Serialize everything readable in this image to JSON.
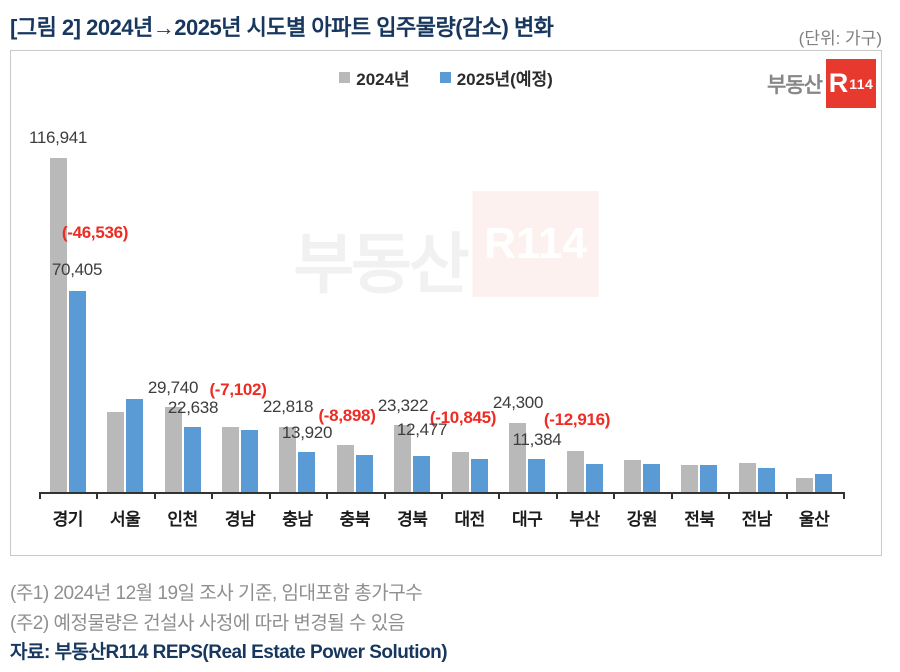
{
  "page": {
    "title": "[그림 2] 2024년→2025년 시도별 아파트 입주물량(감소) 변화",
    "unit_note": "(단위: 가구)",
    "footnote1": "(주1) 2024년 12월 19일 조사 기준, 임대포함 총가구수",
    "footnote2": "(주2) 예정물량은 건설사 사정에 따라 변경될 수 있음",
    "source": "자료: 부동산R114 REPS(Real Estate Power Solution)"
  },
  "legend": {
    "label_2024": "2024년",
    "label_2025": "2025년(예정)"
  },
  "logo": {
    "prefix": "부동산",
    "mark_r": "R",
    "mark_num": "114"
  },
  "watermark": {
    "prefix": "부동산",
    "mark": "R114"
  },
  "colors": {
    "bar_2024": "#b9b9b9",
    "bar_2025": "#5b9bd5",
    "diff_label": "#ee2c24",
    "title": "#17375e",
    "logo_red": "#e8392e"
  },
  "chart_data": {
    "type": "bar",
    "title": "[그림 2] 2024년→2025년 시도별 아파트 입주물량(감소) 변화",
    "unit": "가구",
    "categories": [
      "경기",
      "서울",
      "인천",
      "경남",
      "충남",
      "충북",
      "경북",
      "대전",
      "대구",
      "부산",
      "강원",
      "전북",
      "전남",
      "울산"
    ],
    "series": [
      {
        "name": "2024년",
        "color": "#b9b9b9",
        "values": [
          116941,
          27900,
          29740,
          22600,
          22818,
          16400,
          23322,
          14000,
          24300,
          14300,
          11200,
          9400,
          10100,
          4900
        ]
      },
      {
        "name": "2025년(예정)",
        "color": "#5b9bd5",
        "values": [
          70405,
          32500,
          22638,
          21600,
          13920,
          13000,
          12477,
          11500,
          11384,
          9800,
          9800,
          9400,
          8400,
          6300
        ]
      }
    ],
    "ylim": [
      0,
      120000
    ],
    "grid": false,
    "legend_position": "top-center",
    "annotations": [
      {
        "category": "경기",
        "v2024": "116,941",
        "diff": "(-46,536)",
        "v2025": "70,405"
      },
      {
        "category": "인천",
        "v2024": "29,740",
        "diff": "(-7,102)",
        "v2025": "22,638"
      },
      {
        "category": "충남",
        "v2024": "22,818",
        "diff": "(-8,898)",
        "v2025": "13,920"
      },
      {
        "category": "경북",
        "v2024": "23,322",
        "diff": "(-10,845)",
        "v2025": "12,477"
      },
      {
        "category": "대구",
        "v2024": "24,300",
        "diff": "(-12,916)",
        "v2025": "11,384"
      }
    ]
  }
}
